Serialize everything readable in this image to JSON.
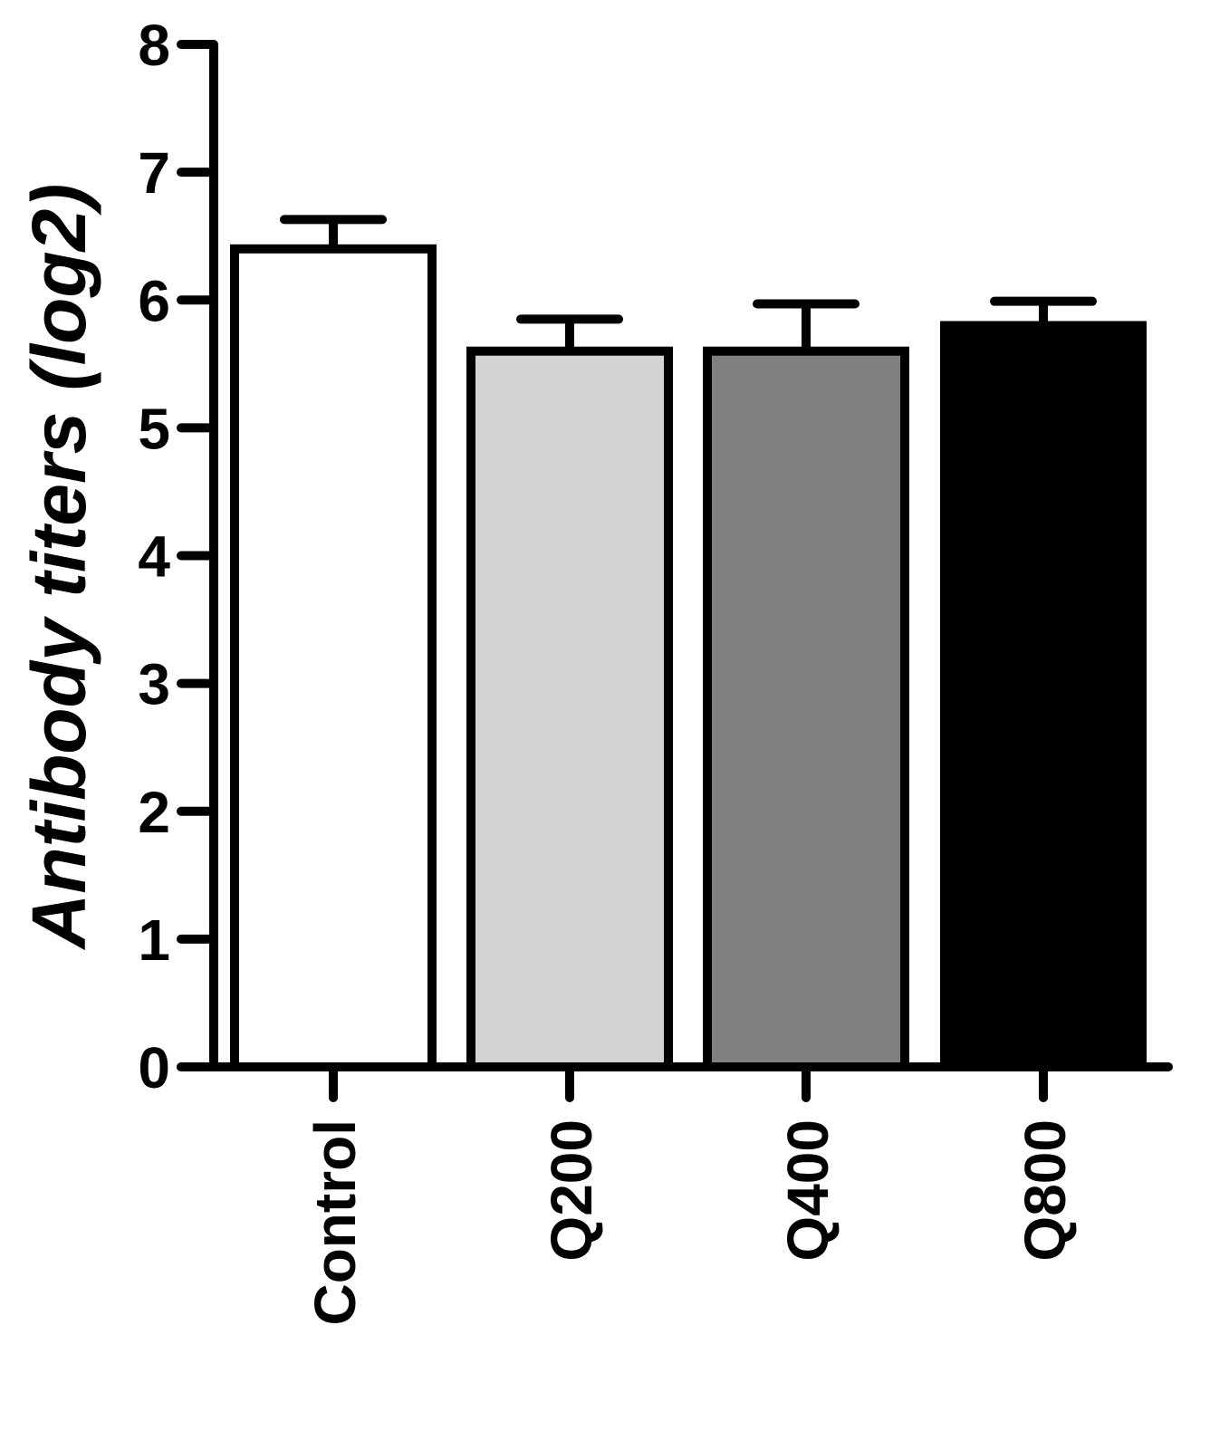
{
  "chart_data": {
    "type": "bar",
    "title": "",
    "xlabel": "",
    "ylabel": "Antibody titers (log2)",
    "ylim": [
      0,
      8
    ],
    "yticks": [
      "0",
      "1",
      "2",
      "3",
      "4",
      "5",
      "6",
      "7",
      "8"
    ],
    "categories": [
      "Control",
      "Q200",
      "Q400",
      "Q800"
    ],
    "values": [
      6.4,
      5.6,
      5.6,
      5.8
    ],
    "errors": [
      0.23,
      0.25,
      0.37,
      0.19
    ],
    "bar_colors": [
      "#ffffff",
      "#d3d3d3",
      "#808080",
      "#000000"
    ],
    "grid": false,
    "legend": "none"
  }
}
